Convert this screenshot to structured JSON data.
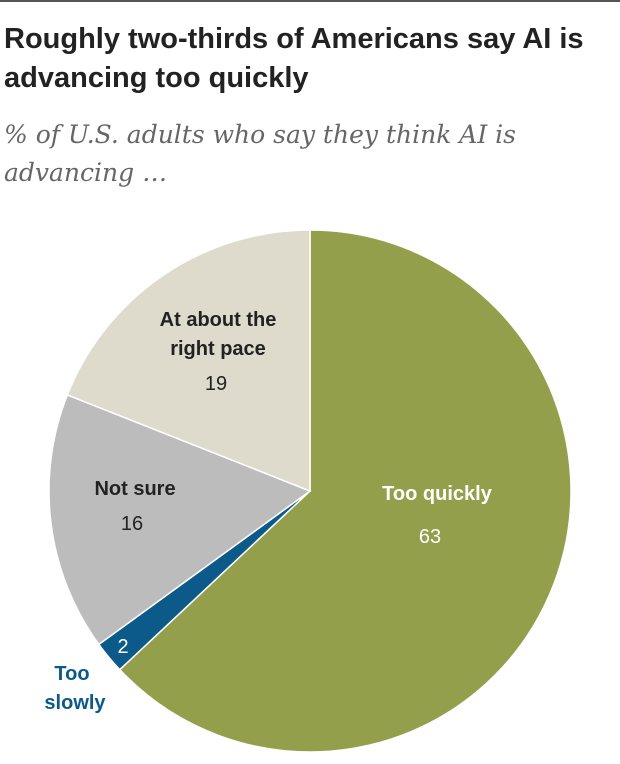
{
  "chart_data": {
    "type": "pie",
    "title": "Roughly two-thirds of Americans say AI is advancing too quickly",
    "subtitle": "% of U.S. adults who say they think AI is advancing …",
    "slices": [
      {
        "label": "Too quickly",
        "value": 63,
        "color": "#949f4c",
        "label_color": "#ffffff",
        "value_color": "#ffffff"
      },
      {
        "label": "Too slowly",
        "value": 2,
        "color": "#0b5a8a",
        "label_color": "#0b5a8a",
        "value_color": "#ffffff"
      },
      {
        "label": "Not sure",
        "value": 16,
        "color": "#bcbcbc",
        "label_color": "#222222",
        "value_color": "#222222"
      },
      {
        "label": "At about the right pace",
        "value": 19,
        "color": "#dedbcc",
        "label_color": "#222222",
        "value_color": "#222222"
      }
    ],
    "start": "12 o'clock",
    "direction": "clockwise"
  }
}
